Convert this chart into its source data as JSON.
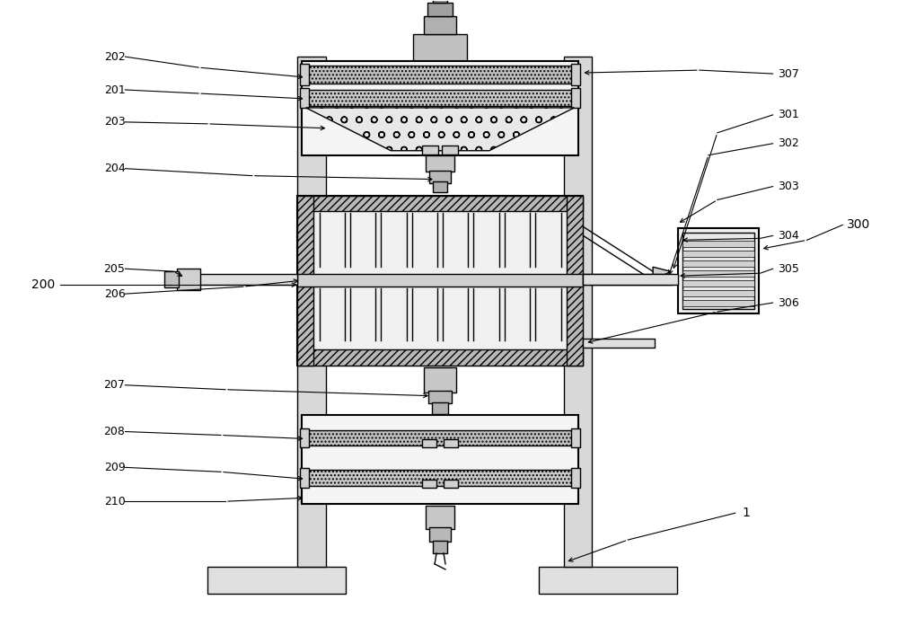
{
  "bg_color": "#ffffff",
  "line_color": "#000000",
  "fig_w": 10.0,
  "fig_h": 7.17,
  "dpi": 100
}
